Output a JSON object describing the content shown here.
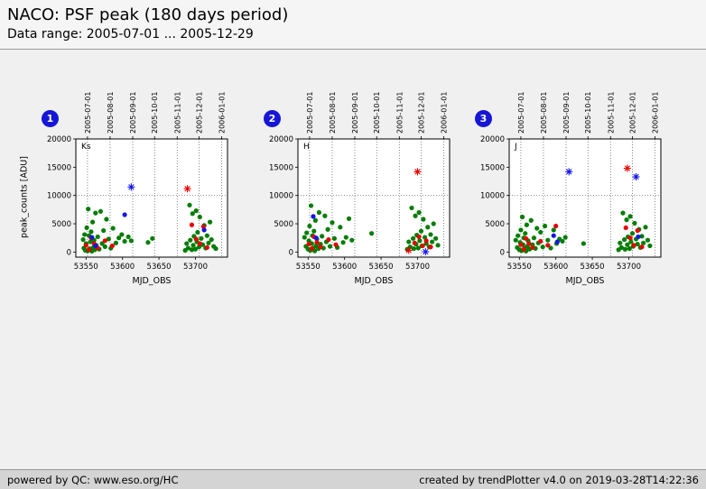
{
  "header": {
    "title": "NACO: PSF peak (180 days period)",
    "subtitle": "Data range: 2005-07-01 ... 2005-12-29"
  },
  "footer": {
    "left": "powered by QC: www.eso.org/HC",
    "right": "created by trendPlotter v4.0 on 2019-03-28T14:22:36"
  },
  "chart_data": {
    "type": "scatter",
    "title": "NACO: PSF peak (180 days period)",
    "xlabel": "MJD_OBS",
    "ylabel": "peak_counts [ADU]",
    "xlim": [
      53536,
      53744
    ],
    "ylim": [
      -900,
      20000
    ],
    "x_ticks": [
      53550,
      53600,
      53650,
      53700
    ],
    "y_ticks": [
      0,
      5000,
      10000,
      15000,
      20000
    ],
    "hlines": [
      10000
    ],
    "grid": "dotted vertical lines at month starts, dotted horizontal at 10000",
    "legend_position": "none",
    "top_ticks": [
      {
        "mjd": 53552,
        "label": "2005-07-01"
      },
      {
        "mjd": 53583,
        "label": "2005-08-01"
      },
      {
        "mjd": 53614,
        "label": "2005-09-01"
      },
      {
        "mjd": 53644,
        "label": "2005-10-01"
      },
      {
        "mjd": 53675,
        "label": "2005-11-01"
      },
      {
        "mjd": 53705,
        "label": "2005-12-01"
      },
      {
        "mjd": 53736,
        "label": "2006-01-01"
      }
    ],
    "colors": {
      "g": "#007d00",
      "r": "#e80000",
      "b": "#1414e8"
    },
    "panels": [
      {
        "badge": "1",
        "label": "Ks",
        "points": [
          [
            53546,
            2200,
            "g"
          ],
          [
            53547,
            700,
            "g"
          ],
          [
            53548,
            3100,
            "g"
          ],
          [
            53549,
            300,
            "g"
          ],
          [
            53550,
            1500,
            "g"
          ],
          [
            53551,
            4300,
            "g"
          ],
          [
            53552,
            200,
            "g"
          ],
          [
            53553,
            7600,
            "g"
          ],
          [
            53554,
            2900,
            "g"
          ],
          [
            53555,
            600,
            "g"
          ],
          [
            53556,
            1800,
            "g"
          ],
          [
            53557,
            3600,
            "g"
          ],
          [
            53558,
            150,
            "g"
          ],
          [
            53559,
            5300,
            "g"
          ],
          [
            53560,
            800,
            "g"
          ],
          [
            53561,
            2100,
            "g"
          ],
          [
            53562,
            420,
            "g"
          ],
          [
            53563,
            6900,
            "g"
          ],
          [
            53564,
            1200,
            "g"
          ],
          [
            53566,
            2700,
            "g"
          ],
          [
            53568,
            520,
            "g"
          ],
          [
            53570,
            7200,
            "g"
          ],
          [
            53572,
            1500,
            "g"
          ],
          [
            53574,
            3800,
            "g"
          ],
          [
            53576,
            950,
            "g"
          ],
          [
            53578,
            5800,
            "g"
          ],
          [
            53581,
            2300,
            "g"
          ],
          [
            53584,
            680,
            "g"
          ],
          [
            53587,
            4200,
            "g"
          ],
          [
            53591,
            1600,
            "g"
          ],
          [
            53595,
            2500,
            "g"
          ],
          [
            53599,
            3100,
            "g"
          ],
          [
            53603,
            1900,
            "g"
          ],
          [
            53608,
            2700,
            "g"
          ],
          [
            53612,
            2000,
            "g"
          ],
          [
            53635,
            1700,
            "g"
          ],
          [
            53641,
            2400,
            "g"
          ],
          [
            53686,
            300,
            "g"
          ],
          [
            53688,
            1500,
            "g"
          ],
          [
            53690,
            700,
            "g"
          ],
          [
            53692,
            8300,
            "g"
          ],
          [
            53693,
            2100,
            "g"
          ],
          [
            53695,
            420,
            "g"
          ],
          [
            53696,
            6800,
            "g"
          ],
          [
            53697,
            1200,
            "g"
          ],
          [
            53698,
            2800,
            "g"
          ],
          [
            53700,
            520,
            "g"
          ],
          [
            53701,
            7300,
            "g"
          ],
          [
            53702,
            1800,
            "g"
          ],
          [
            53703,
            3500,
            "g"
          ],
          [
            53705,
            900,
            "g"
          ],
          [
            53706,
            6200,
            "g"
          ],
          [
            53708,
            2400,
            "g"
          ],
          [
            53710,
            1300,
            "g"
          ],
          [
            53712,
            4700,
            "g"
          ],
          [
            53714,
            700,
            "g"
          ],
          [
            53716,
            2900,
            "g"
          ],
          [
            53718,
            1600,
            "g"
          ],
          [
            53720,
            5300,
            "g"
          ],
          [
            53722,
            2200,
            "g"
          ],
          [
            53725,
            1000,
            "g"
          ],
          [
            53728,
            600,
            "g"
          ],
          [
            53550,
            1200,
            "r"
          ],
          [
            53554,
            420,
            "r"
          ],
          [
            53557,
            2500,
            "r"
          ],
          [
            53561,
            1500,
            "r"
          ],
          [
            53566,
            720,
            "r"
          ],
          [
            53576,
            2000,
            "r"
          ],
          [
            53586,
            1100,
            "r"
          ],
          [
            53695,
            4800,
            "r"
          ],
          [
            53701,
            2300,
            "r"
          ],
          [
            53706,
            1500,
            "r"
          ],
          [
            53711,
            4500,
            "r"
          ],
          [
            53716,
            800,
            "r"
          ],
          [
            53558,
            2600,
            "b"
          ],
          [
            53563,
            1100,
            "b"
          ],
          [
            53603,
            6600,
            "b"
          ],
          [
            53712,
            3900,
            "b"
          ],
          [
            53612,
            11500,
            "b",
            "*"
          ],
          [
            53689,
            11200,
            "r",
            "*"
          ]
        ]
      },
      {
        "badge": "2",
        "label": "H",
        "points": [
          [
            53545,
            2600,
            "g"
          ],
          [
            53547,
            1000,
            "g"
          ],
          [
            53548,
            3400,
            "g"
          ],
          [
            53550,
            500,
            "g"
          ],
          [
            53551,
            2000,
            "g"
          ],
          [
            53552,
            4600,
            "g"
          ],
          [
            53553,
            300,
            "g"
          ],
          [
            53554,
            8200,
            "g"
          ],
          [
            53555,
            1500,
            "g"
          ],
          [
            53556,
            2900,
            "g"
          ],
          [
            53557,
            700,
            "g"
          ],
          [
            53558,
            3700,
            "g"
          ],
          [
            53559,
            200,
            "g"
          ],
          [
            53560,
            5600,
            "g"
          ],
          [
            53561,
            1100,
            "g"
          ],
          [
            53562,
            2300,
            "g"
          ],
          [
            53564,
            600,
            "g"
          ],
          [
            53565,
            7000,
            "g"
          ],
          [
            53567,
            1400,
            "g"
          ],
          [
            53569,
            2800,
            "g"
          ],
          [
            53571,
            700,
            "g"
          ],
          [
            53573,
            6400,
            "g"
          ],
          [
            53575,
            1800,
            "g"
          ],
          [
            53577,
            4000,
            "g"
          ],
          [
            53580,
            1000,
            "g"
          ],
          [
            53583,
            5200,
            "g"
          ],
          [
            53586,
            2400,
            "g"
          ],
          [
            53590,
            800,
            "g"
          ],
          [
            53594,
            4400,
            "g"
          ],
          [
            53598,
            1700,
            "g"
          ],
          [
            53602,
            2600,
            "g"
          ],
          [
            53606,
            5900,
            "g"
          ],
          [
            53610,
            2100,
            "g"
          ],
          [
            53637,
            3300,
            "g"
          ],
          [
            53686,
            500,
            "g"
          ],
          [
            53688,
            1800,
            "g"
          ],
          [
            53690,
            900,
            "g"
          ],
          [
            53692,
            7800,
            "g"
          ],
          [
            53694,
            2400,
            "g"
          ],
          [
            53695,
            600,
            "g"
          ],
          [
            53697,
            6400,
            "g"
          ],
          [
            53698,
            1400,
            "g"
          ],
          [
            53699,
            3000,
            "g"
          ],
          [
            53701,
            700,
            "g"
          ],
          [
            53702,
            7000,
            "g"
          ],
          [
            53703,
            2000,
            "g"
          ],
          [
            53705,
            3700,
            "g"
          ],
          [
            53706,
            1100,
            "g"
          ],
          [
            53708,
            5800,
            "g"
          ],
          [
            53710,
            2600,
            "g"
          ],
          [
            53712,
            1500,
            "g"
          ],
          [
            53714,
            4400,
            "g"
          ],
          [
            53716,
            900,
            "g"
          ],
          [
            53718,
            3100,
            "g"
          ],
          [
            53720,
            1800,
            "g"
          ],
          [
            53722,
            5000,
            "g"
          ],
          [
            53725,
            2400,
            "g"
          ],
          [
            53728,
            1200,
            "g"
          ],
          [
            53551,
            1400,
            "r"
          ],
          [
            53555,
            600,
            "r"
          ],
          [
            53558,
            2700,
            "r"
          ],
          [
            53562,
            1700,
            "r"
          ],
          [
            53567,
            900,
            "r"
          ],
          [
            53578,
            2200,
            "r"
          ],
          [
            53588,
            1300,
            "r"
          ],
          [
            53696,
            1600,
            "r"
          ],
          [
            53702,
            2700,
            "r"
          ],
          [
            53707,
            1100,
            "r"
          ],
          [
            53712,
            2000,
            "r"
          ],
          [
            53718,
            900,
            "r"
          ],
          [
            53557,
            6300,
            "b"
          ],
          [
            53561,
            2500,
            "b"
          ],
          [
            53700,
            14200,
            "r",
            "*"
          ],
          [
            53688,
            300,
            "r",
            "*"
          ],
          [
            53711,
            50,
            "b",
            "*"
          ]
        ]
      },
      {
        "badge": "3",
        "label": "J",
        "points": [
          [
            53545,
            2100,
            "g"
          ],
          [
            53547,
            800,
            "g"
          ],
          [
            53548,
            2900,
            "g"
          ],
          [
            53550,
            400,
            "g"
          ],
          [
            53551,
            1700,
            "g"
          ],
          [
            53552,
            3900,
            "g"
          ],
          [
            53553,
            250,
            "g"
          ],
          [
            53554,
            6200,
            "g"
          ],
          [
            53555,
            1300,
            "g"
          ],
          [
            53556,
            2500,
            "g"
          ],
          [
            53557,
            600,
            "g"
          ],
          [
            53558,
            3300,
            "g"
          ],
          [
            53559,
            180,
            "g"
          ],
          [
            53560,
            4800,
            "g"
          ],
          [
            53561,
            1000,
            "g"
          ],
          [
            53562,
            2000,
            "g"
          ],
          [
            53564,
            520,
            "g"
          ],
          [
            53566,
            5600,
            "g"
          ],
          [
            53568,
            1300,
            "g"
          ],
          [
            53570,
            2500,
            "g"
          ],
          [
            53572,
            640,
            "g"
          ],
          [
            53574,
            4200,
            "g"
          ],
          [
            53576,
            1600,
            "g"
          ],
          [
            53579,
            3500,
            "g"
          ],
          [
            53582,
            900,
            "g"
          ],
          [
            53585,
            4600,
            "g"
          ],
          [
            53589,
            2100,
            "g"
          ],
          [
            53593,
            700,
            "g"
          ],
          [
            53597,
            3900,
            "g"
          ],
          [
            53601,
            1500,
            "g"
          ],
          [
            53605,
            2300,
            "g"
          ],
          [
            53609,
            1900,
            "g"
          ],
          [
            53613,
            2600,
            "g"
          ],
          [
            53638,
            1500,
            "g"
          ],
          [
            53686,
            400,
            "g"
          ],
          [
            53688,
            1600,
            "g"
          ],
          [
            53690,
            800,
            "g"
          ],
          [
            53692,
            6900,
            "g"
          ],
          [
            53694,
            2200,
            "g"
          ],
          [
            53695,
            500,
            "g"
          ],
          [
            53697,
            5700,
            "g"
          ],
          [
            53698,
            1300,
            "g"
          ],
          [
            53699,
            2700,
            "g"
          ],
          [
            53701,
            600,
            "g"
          ],
          [
            53702,
            6300,
            "g"
          ],
          [
            53703,
            1800,
            "g"
          ],
          [
            53705,
            3300,
            "g"
          ],
          [
            53706,
            1000,
            "g"
          ],
          [
            53708,
            5100,
            "g"
          ],
          [
            53710,
            2300,
            "g"
          ],
          [
            53712,
            1400,
            "g"
          ],
          [
            53714,
            4000,
            "g"
          ],
          [
            53716,
            800,
            "g"
          ],
          [
            53718,
            2800,
            "g"
          ],
          [
            53720,
            1600,
            "g"
          ],
          [
            53723,
            4400,
            "g"
          ],
          [
            53726,
            2100,
            "g"
          ],
          [
            53729,
            1100,
            "g"
          ],
          [
            53552,
            1300,
            "r"
          ],
          [
            53556,
            500,
            "r"
          ],
          [
            53559,
            2400,
            "r"
          ],
          [
            53563,
            1500,
            "r"
          ],
          [
            53568,
            800,
            "r"
          ],
          [
            53579,
            1900,
            "r"
          ],
          [
            53589,
            1200,
            "r"
          ],
          [
            53600,
            4600,
            "r"
          ],
          [
            53696,
            4300,
            "r"
          ],
          [
            53702,
            2500,
            "r"
          ],
          [
            53707,
            1200,
            "r"
          ],
          [
            53712,
            3800,
            "r"
          ],
          [
            53718,
            900,
            "r"
          ],
          [
            53597,
            2900,
            "b"
          ],
          [
            53602,
            1800,
            "b"
          ],
          [
            53713,
            2700,
            "b"
          ],
          [
            53618,
            14200,
            "b",
            "*"
          ],
          [
            53698,
            14800,
            "r",
            "*"
          ],
          [
            53710,
            13300,
            "b",
            "*"
          ]
        ]
      }
    ]
  }
}
